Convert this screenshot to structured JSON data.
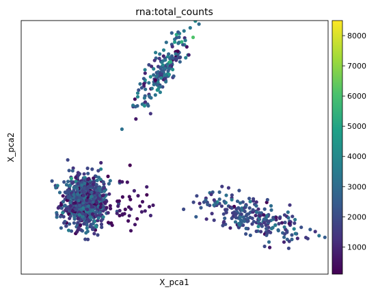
{
  "chart_data": {
    "type": "scatter",
    "title": "rna:total_counts",
    "xlabel": "X_pca1",
    "ylabel": "X_pca2",
    "colormap": "viridis",
    "colorbar": {
      "range": [
        100,
        8500
      ],
      "ticks": [
        1000,
        2000,
        3000,
        4000,
        5000,
        6000,
        7000,
        8000
      ],
      "tick_labels": [
        "1000",
        "2000",
        "3000",
        "4000",
        "5000",
        "6000",
        "7000",
        "8000"
      ]
    },
    "xlim": [
      -1,
      11
    ],
    "ylim": [
      -1,
      9.1
    ],
    "axes_ticks_visible": false,
    "grid": false,
    "clusters": [
      {
        "name": "",
        "center": [
          1.5,
          1.9
        ],
        "spread": [
          0.45,
          0.55
        ],
        "n": 760,
        "mean_counts": 2000,
        "sd_counts": 900
      },
      {
        "name": "",
        "center": [
          4.6,
          7.2
        ],
        "spread": [
          0.55,
          0.75
        ],
        "n": 190,
        "mean_counts": 2600,
        "sd_counts": 1100
      },
      {
        "name": "",
        "center": [
          8.0,
          1.3
        ],
        "spread": [
          1.0,
          0.35
        ],
        "n": 240,
        "mean_counts": 2100,
        "sd_counts": 800
      },
      {
        "name": "",
        "center": [
          3.2,
          1.9
        ],
        "spread": [
          0.6,
          0.5
        ],
        "n": 40,
        "mean_counts": 500,
        "sd_counts": 250
      }
    ]
  }
}
